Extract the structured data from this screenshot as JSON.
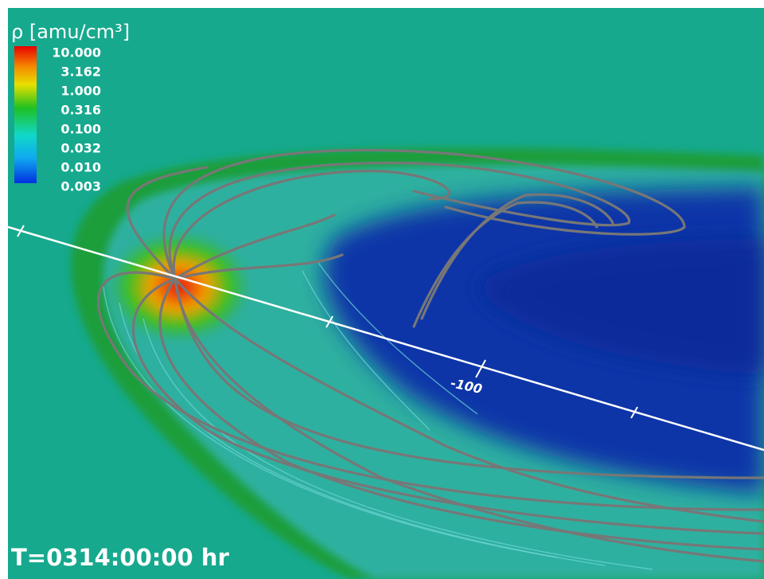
{
  "colorbar": {
    "title": "ρ [amu/cm³]",
    "ticks": [
      "10.000",
      "3.162",
      "1.000",
      "0.316",
      "0.100",
      "0.032",
      "0.010",
      "0.003"
    ]
  },
  "axis": {
    "label": "-100"
  },
  "time_label": "T=0314:00:00 hr"
}
